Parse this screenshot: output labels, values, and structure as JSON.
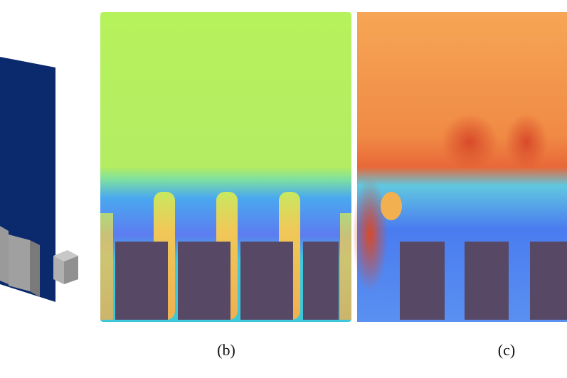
{
  "panels": [
    {
      "label": "(b)"
    },
    {
      "label": "(c)"
    }
  ]
}
